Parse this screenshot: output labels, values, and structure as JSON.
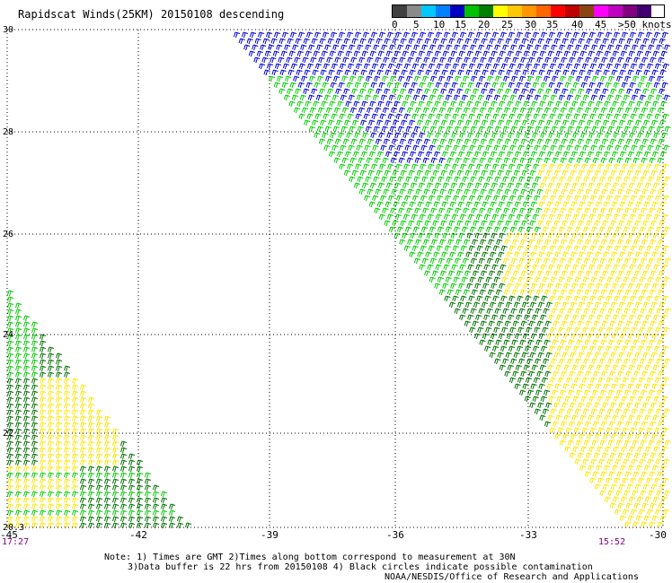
{
  "title": "Rapidscat Winds(25KM) 20150108 descending",
  "scale": {
    "labels": [
      "0",
      "5",
      "10",
      "15",
      "20",
      "25",
      "30",
      "35",
      "40",
      "45",
      ">50 knots"
    ],
    "colors": [
      "#404040",
      "#8a8a8a",
      "#00c8ff",
      "#0080ff",
      "#0000c0",
      "#00c000",
      "#008000",
      "#ffff00",
      "#ffc800",
      "#ff9600",
      "#ff6400",
      "#ff0000",
      "#c00000",
      "#8b4513",
      "#ff00ff",
      "#c000c0",
      "#800080",
      "#400070"
    ]
  },
  "axes": {
    "lon_ticks": [
      "-45",
      "-42",
      "-39",
      "-36",
      "-33",
      "-30"
    ],
    "lat_ticks": [
      "30",
      "28",
      "26",
      "24",
      "22",
      "20.3"
    ],
    "lat_range": [
      20.3,
      30
    ],
    "lon_range": [
      -45,
      -30
    ]
  },
  "times": {
    "left": "17:27",
    "right": "15:52"
  },
  "note": {
    "line1": "Note: 1) Times are GMT 2)Times along bottom correspond to measurement at 30N",
    "line2": "3)Data buffer is 22 hrs from 20150108 4) Black circles indicate possible contamination",
    "line3": "NOAA/NESDIS/Office of Research and Applications"
  },
  "wind_colors": {
    "blue": "#0000d0",
    "light_green": "#00cc00",
    "dark_green": "#007000",
    "yellow": "#ffe600"
  }
}
